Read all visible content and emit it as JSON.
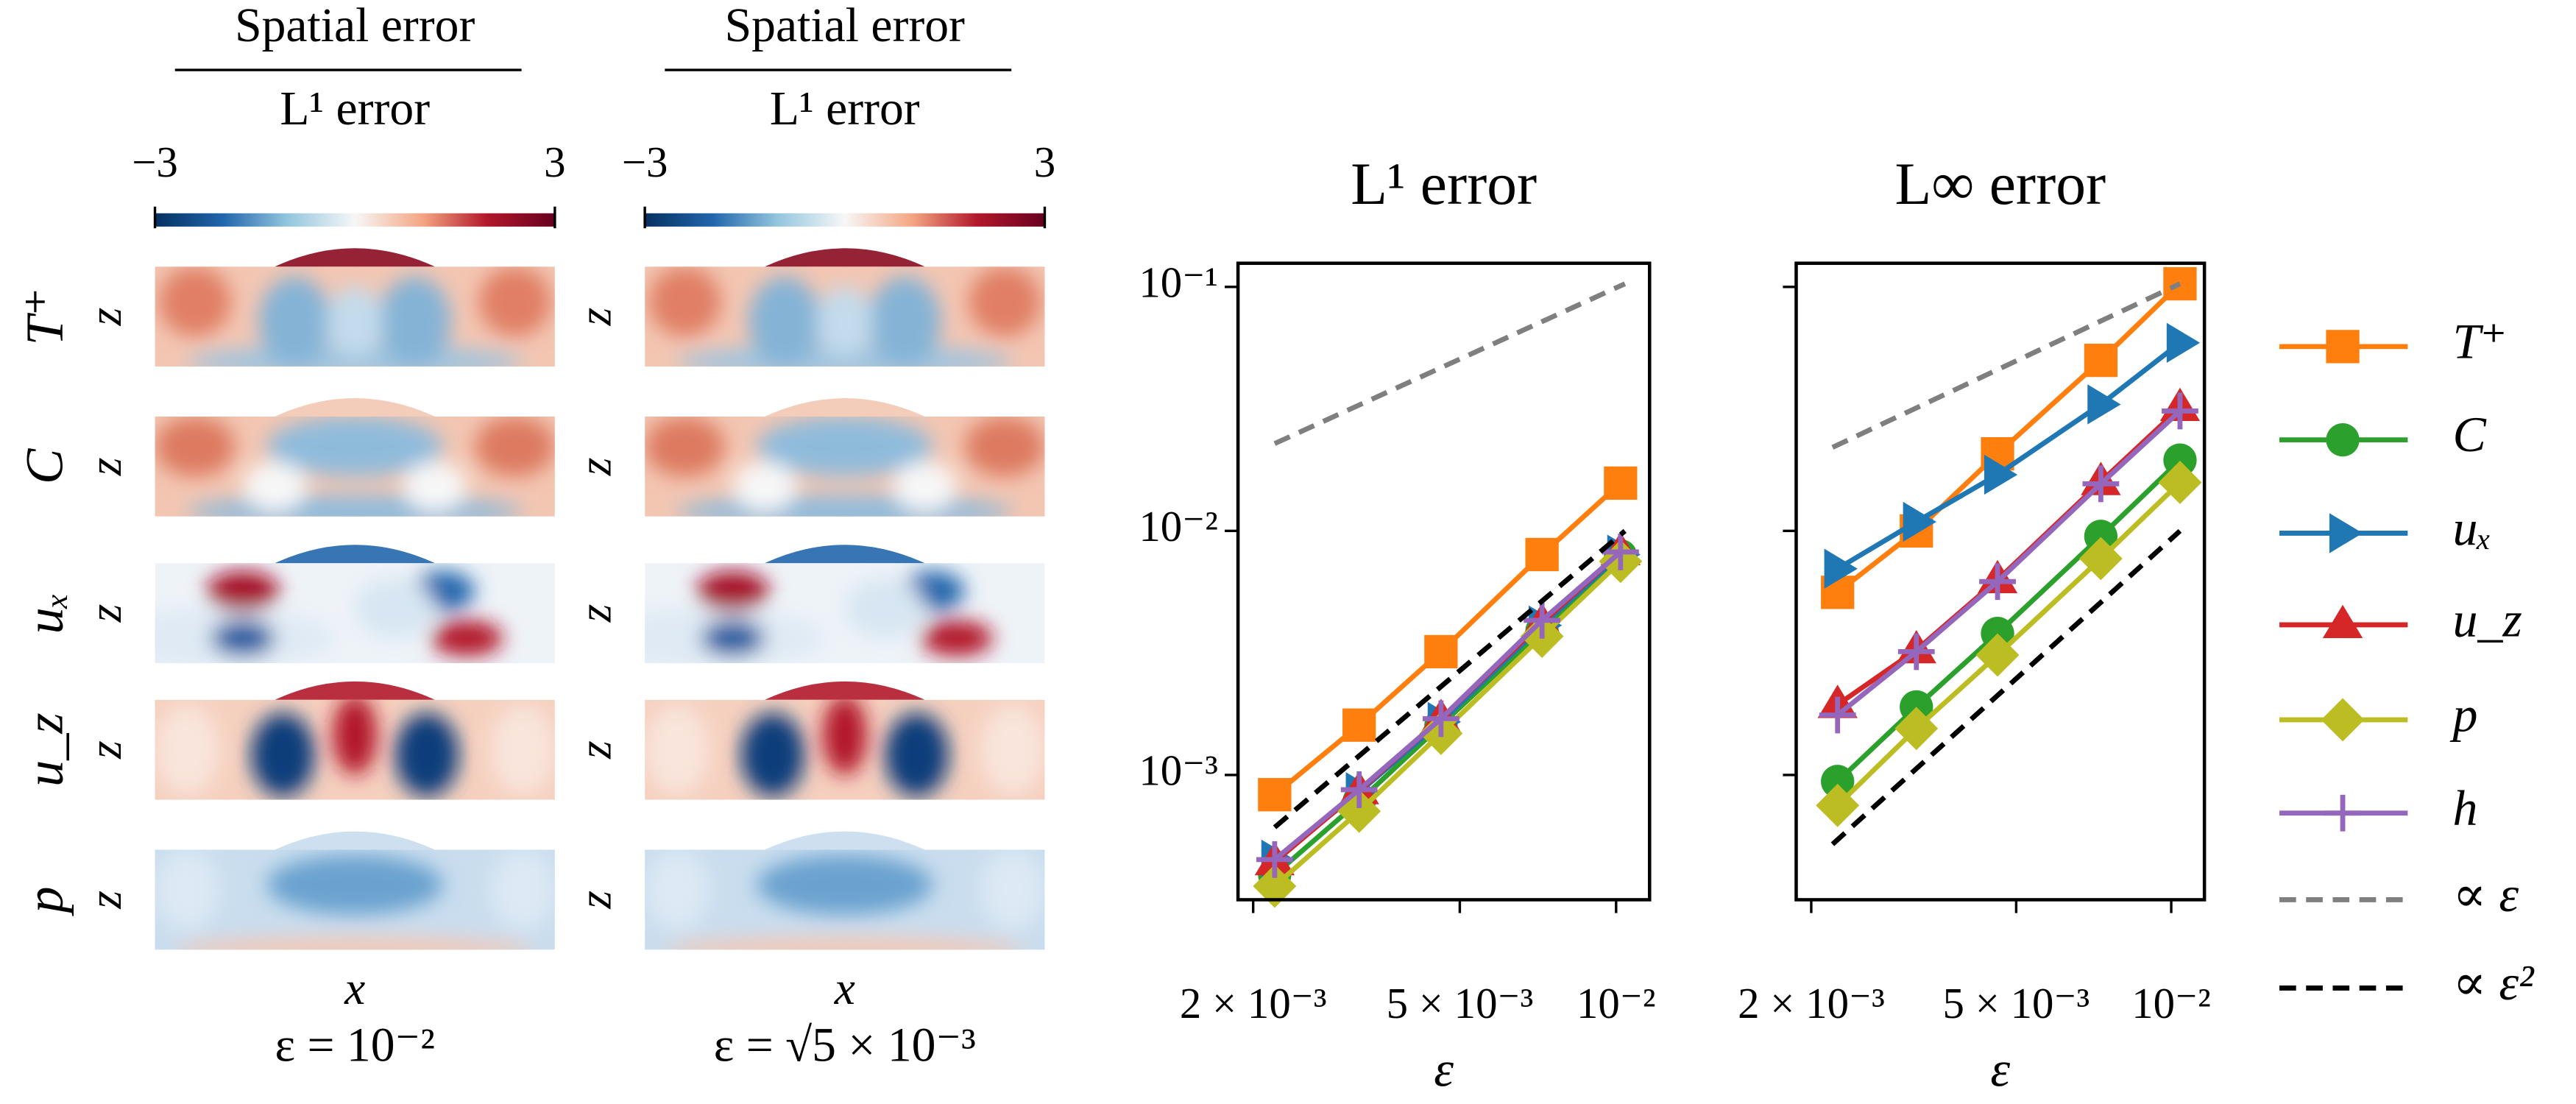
{
  "heatmaps": {
    "title_top": "Spatial error",
    "title_bottom": "L¹ error",
    "clim": [
      -3,
      3
    ],
    "cticks": [
      {
        "value": -3,
        "label": "−3"
      },
      {
        "value": 3,
        "label": "3"
      }
    ],
    "rows": [
      "T⁺",
      "C",
      "uₓ",
      "u_z",
      "p"
    ],
    "ylabel": "z",
    "xlabel": "x",
    "columns": [
      "ε = 10⁻²",
      "ε = √5 × 10⁻³"
    ]
  },
  "chart_data": [
    {
      "type": "line",
      "title": "L¹ error",
      "xlabel": "ε",
      "log_x": true,
      "log_y": true,
      "xlim": [
        0.00187,
        0.0116
      ],
      "ylim": [
        0.000308,
        0.125
      ],
      "xticks": [
        {
          "value": 0.002,
          "label": "2 × 10⁻³"
        },
        {
          "value": 0.005,
          "label": "5 × 10⁻³"
        },
        {
          "value": 0.01,
          "label": "10⁻²"
        }
      ],
      "yticks": [
        {
          "value": 0.1,
          "label": "10⁻¹"
        },
        {
          "value": 0.01,
          "label": "10⁻²"
        },
        {
          "value": 0.001,
          "label": "10⁻³"
        }
      ],
      "x": [
        0.0022,
        0.0032,
        0.0046,
        0.0072,
        0.0102
      ],
      "series": [
        {
          "name": "T⁺",
          "color": "#ff7f0e",
          "marker": "s",
          "values": [
            0.00083,
            0.0016,
            0.0032,
            0.008,
            0.0157
          ]
        },
        {
          "name": "C",
          "color": "#2ca02c",
          "marker": "o",
          "values": [
            0.00039,
            0.00078,
            0.0016,
            0.0039,
            0.0079
          ]
        },
        {
          "name": "uₓ",
          "color": "#1f77b4",
          "marker": ">",
          "values": [
            0.00045,
            0.00085,
            0.00165,
            0.0041,
            0.008
          ]
        },
        {
          "name": "u_z",
          "color": "#d62728",
          "marker": "^",
          "values": [
            0.00044,
            0.00086,
            0.0017,
            0.0042,
            0.0082
          ]
        },
        {
          "name": "p",
          "color": "#bcbd22",
          "marker": "D",
          "values": [
            0.00035,
            0.00071,
            0.00148,
            0.0037,
            0.0075
          ]
        },
        {
          "name": "h",
          "color": "#9467bd",
          "marker": "+",
          "values": [
            0.00045,
            0.00087,
            0.0017,
            0.0043,
            0.0082
          ]
        },
        {
          "name": "∝ ε",
          "color": "#7f7f7f",
          "dashed": true,
          "x": [
            0.0022,
            0.0104
          ],
          "values": [
            0.0228,
            0.103
          ]
        },
        {
          "name": "∝ ε²",
          "color": "#000000",
          "dashed": true,
          "x": [
            0.0022,
            0.0104
          ],
          "values": [
            0.00061,
            0.01
          ]
        }
      ]
    },
    {
      "type": "line",
      "title": "L∞ error",
      "xlabel": "ε",
      "log_x": true,
      "log_y": true,
      "sharey": true,
      "xlim": [
        0.00187,
        0.0116
      ],
      "ylim": [
        0.000308,
        0.125
      ],
      "xticks": [
        {
          "value": 0.002,
          "label": "2 × 10⁻³"
        },
        {
          "value": 0.005,
          "label": "5 × 10⁻³"
        },
        {
          "value": 0.01,
          "label": "10⁻²"
        }
      ],
      "x": [
        0.00225,
        0.0032,
        0.0046,
        0.0073,
        0.0104
      ],
      "series": [
        {
          "name": "T⁺",
          "color": "#ff7f0e",
          "marker": "s",
          "values": [
            0.0056,
            0.01,
            0.0207,
            0.05,
            0.103
          ]
        },
        {
          "name": "C",
          "color": "#2ca02c",
          "marker": "o",
          "values": [
            0.00094,
            0.0019,
            0.0038,
            0.0095,
            0.0195
          ]
        },
        {
          "name": "uₓ",
          "color": "#1f77b4",
          "marker": ">",
          "values": [
            0.007,
            0.0109,
            0.017,
            0.033,
            0.059
          ]
        },
        {
          "name": "u_z",
          "color": "#d62728",
          "marker": "^",
          "values": [
            0.00194,
            0.00325,
            0.0063,
            0.0159,
            0.032
          ]
        },
        {
          "name": "p",
          "color": "#bcbd22",
          "marker": "D",
          "values": [
            0.00075,
            0.00155,
            0.0031,
            0.0077,
            0.0158
          ]
        },
        {
          "name": "h",
          "color": "#9467bd",
          "marker": "+",
          "values": [
            0.00176,
            0.0032,
            0.0062,
            0.0156,
            0.031
          ]
        },
        {
          "name": "∝ ε",
          "color": "#7f7f7f",
          "dashed": true,
          "x": [
            0.0022,
            0.0104
          ],
          "values": [
            0.022,
            0.103
          ]
        },
        {
          "name": "∝ ε²",
          "color": "#000000",
          "dashed": true,
          "x": [
            0.0022,
            0.0104
          ],
          "values": [
            0.00052,
            0.01
          ]
        }
      ]
    }
  ]
}
